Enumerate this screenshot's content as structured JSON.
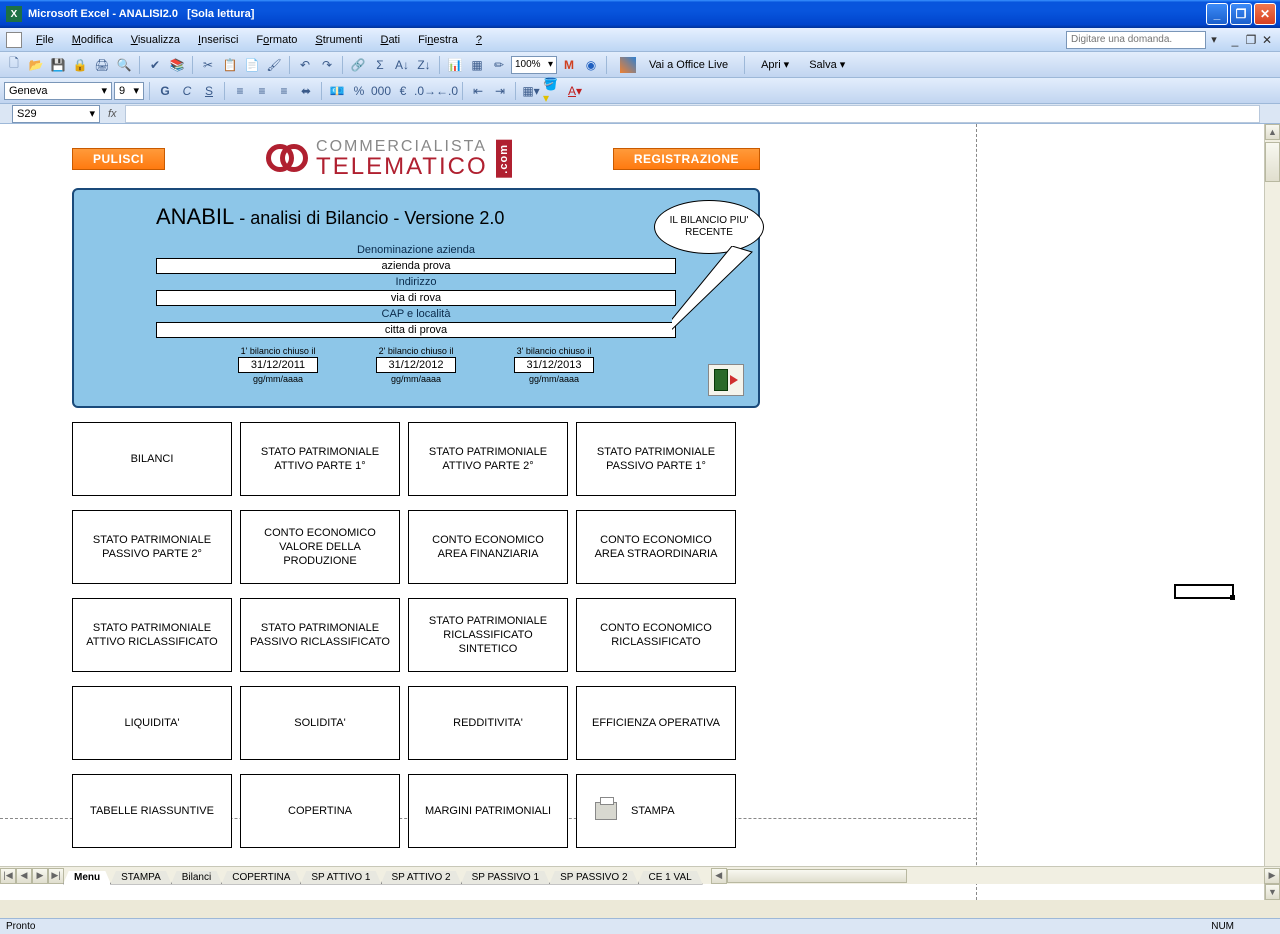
{
  "window": {
    "app": "Microsoft Excel",
    "doc": "ANALISI2.0",
    "mode": "[Sola lettura]"
  },
  "menu": {
    "items": [
      "File",
      "Modifica",
      "Visualizza",
      "Inserisci",
      "Formato",
      "Strumenti",
      "Dati",
      "Finestra",
      "?"
    ],
    "question_placeholder": "Digitare una domanda."
  },
  "toolbar": {
    "zoom": "100%",
    "office_live": "Vai a Office Live",
    "apri": "Apri",
    "salva": "Salva"
  },
  "format_bar": {
    "font": "Geneva",
    "size": "9"
  },
  "formula_bar": {
    "cell_ref": "S29",
    "fx": "fx"
  },
  "logo": {
    "line1": "COMMERCIALISTA",
    "line2": "TELEMATICO",
    "com": ".com"
  },
  "top_buttons": {
    "pulisci": "PULISCI",
    "registrazione": "REGISTRAZIONE"
  },
  "panel": {
    "title_big": "ANABIL",
    "title_rest": " - analisi di Bilancio - Versione 2.0",
    "bubble": "IL BILANCIO PIU' RECENTE",
    "fields": [
      {
        "label": "Denominazione azienda",
        "value": "azienda prova"
      },
      {
        "label": "Indirizzo",
        "value": "via di rova"
      },
      {
        "label": "CAP e località",
        "value": "citta di prova"
      }
    ],
    "dates": [
      {
        "label": "1' bilancio chiuso il",
        "value": "31/12/2011",
        "hint": "gg/mm/aaaa"
      },
      {
        "label": "2' bilancio chiuso il",
        "value": "31/12/2012",
        "hint": "gg/mm/aaaa"
      },
      {
        "label": "3' bilancio chiuso il",
        "value": "31/12/2013",
        "hint": "gg/mm/aaaa"
      }
    ]
  },
  "nav_buttons": [
    "BILANCI",
    "STATO PATRIMONIALE ATTIVO PARTE 1°",
    "STATO PATRIMONIALE ATTIVO PARTE 2°",
    "STATO PATRIMONIALE PASSIVO PARTE 1°",
    "STATO PATRIMONIALE PASSIVO PARTE 2°",
    "CONTO ECONOMICO VALORE DELLA PRODUZIONE",
    "CONTO ECONOMICO AREA FINANZIARIA",
    "CONTO ECONOMICO AREA STRAORDINARIA",
    "STATO PATRIMONIALE ATTIVO RICLASSIFICATO",
    "STATO PATRIMONIALE PASSIVO RICLASSIFICATO",
    "STATO PATRIMONIALE RICLASSIFICATO SINTETICO",
    "CONTO ECONOMICO RICLASSIFICATO",
    "LIQUIDITA'",
    "SOLIDITA'",
    "REDDITIVITA'",
    "EFFICIENZA OPERATIVA",
    "TABELLE RIASSUNTIVE",
    "COPERTINA",
    "MARGINI PATRIMONIALI",
    "STAMPA"
  ],
  "sheet_tabs": [
    "Menu",
    "STAMPA",
    "Bilanci",
    "COPERTINA",
    "SP ATTIVO 1",
    "SP ATTIVO 2",
    "SP PASSIVO 1",
    "SP PASSIVO 2",
    "CE 1 VAL"
  ],
  "active_tab": 0,
  "status": {
    "left": "Pronto",
    "num": "NUM"
  },
  "colors": {
    "titlebar_start": "#3a93ff",
    "titlebar_end": "#0044cc",
    "panel_bg": "#8dc6e8",
    "panel_border": "#1a4a7a",
    "orange_btn": "#ff7a10",
    "logo_red": "#b02030"
  }
}
